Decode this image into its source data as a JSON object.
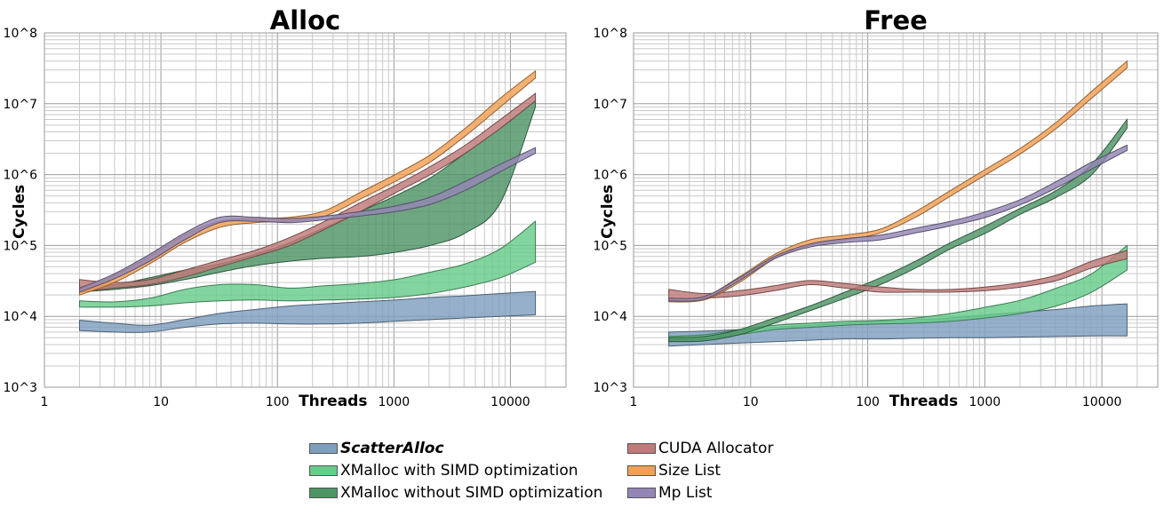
{
  "chart_data": [
    {
      "type": "area",
      "title": "Alloc",
      "xlabel": "Threads",
      "ylabel": "Cycles",
      "xscale": "log",
      "yscale": "log",
      "xlim": [
        1,
        30000
      ],
      "ylim": [
        1000,
        100000000
      ],
      "grid": true,
      "x_tick_labels": [
        "1",
        "10",
        "100",
        "1000",
        "10000"
      ],
      "y_tick_labels": [
        "10^3",
        "10^4",
        "10^5",
        "10^6",
        "10^7",
        "10^8"
      ],
      "x": [
        2,
        4,
        8,
        16,
        32,
        64,
        128,
        256,
        512,
        1024,
        2048,
        4096,
        8192,
        16384
      ],
      "series": [
        {
          "name": "ScatterAlloc",
          "color": "#7f9fbf",
          "low": [
            6300,
            6000,
            6000,
            7000,
            7800,
            8000,
            7800,
            7800,
            8000,
            8500,
            9000,
            9500,
            10000,
            10500
          ],
          "high": [
            8800,
            8000,
            7500,
            9000,
            11000,
            12500,
            14000,
            15000,
            16000,
            17000,
            18500,
            19500,
            21000,
            22500
          ]
        },
        {
          "name": "XMalloc with SIMD optimization",
          "color": "#66cc8a",
          "low": [
            13500,
            13500,
            14000,
            15500,
            16500,
            17000,
            16500,
            17000,
            17500,
            18500,
            21000,
            26000,
            35000,
            58000
          ],
          "high": [
            16500,
            16000,
            18000,
            24000,
            28000,
            28000,
            25000,
            27000,
            29000,
            33000,
            42000,
            55000,
            90000,
            220000
          ]
        },
        {
          "name": "XMalloc without SIMD optimization",
          "color": "#4e9466",
          "low": [
            22000,
            24000,
            27000,
            33000,
            42000,
            52000,
            60000,
            66000,
            70000,
            80000,
            100000,
            150000,
            400000,
            9000000
          ],
          "high": [
            26000,
            28000,
            35000,
            45000,
            55000,
            75000,
            110000,
            180000,
            300000,
            500000,
            900000,
            2000000,
            4500000,
            11000000
          ]
        },
        {
          "name": "CUDA Allocator",
          "color": "#c07a7a",
          "low": [
            22000,
            25000,
            28000,
            36000,
            50000,
            70000,
            100000,
            170000,
            300000,
            550000,
            1000000,
            2000000,
            4500000,
            11000000
          ],
          "high": [
            33000,
            30000,
            33000,
            45000,
            62000,
            85000,
            130000,
            220000,
            400000,
            700000,
            1300000,
            2600000,
            6000000,
            14000000
          ]
        },
        {
          "name": "Size List",
          "color": "#f2a055",
          "low": [
            20000,
            30000,
            55000,
            110000,
            180000,
            210000,
            220000,
            260000,
            450000,
            800000,
            1500000,
            3500000,
            9000000,
            23000000
          ],
          "high": [
            24000,
            38000,
            70000,
            140000,
            220000,
            240000,
            250000,
            310000,
            560000,
            1000000,
            1900000,
            4500000,
            12000000,
            29000000
          ]
        },
        {
          "name": "Mp List",
          "color": "#9486b4",
          "low": [
            22000,
            34000,
            60000,
            120000,
            210000,
            220000,
            210000,
            230000,
            260000,
            300000,
            380000,
            600000,
            1100000,
            2000000
          ],
          "high": [
            25000,
            40000,
            75000,
            150000,
            250000,
            250000,
            240000,
            260000,
            300000,
            360000,
            480000,
            800000,
            1400000,
            2400000
          ]
        }
      ]
    },
    {
      "type": "area",
      "title": "Free",
      "xlabel": "Threads",
      "ylabel": "Cycles",
      "xscale": "log",
      "yscale": "log",
      "xlim": [
        1,
        30000
      ],
      "ylim": [
        1000,
        100000000
      ],
      "grid": true,
      "x_tick_labels": [
        "1",
        "10",
        "100",
        "1000",
        "10000"
      ],
      "y_tick_labels": [
        "10^3",
        "10^4",
        "10^5",
        "10^6",
        "10^7",
        "10^8"
      ],
      "x": [
        2,
        4,
        8,
        16,
        32,
        64,
        128,
        256,
        512,
        1024,
        2048,
        4096,
        8192,
        16384
      ],
      "series": [
        {
          "name": "ScatterAlloc",
          "color": "#7f9fbf",
          "low": [
            3800,
            4000,
            4200,
            4400,
            4600,
            4800,
            4800,
            4900,
            5000,
            5000,
            5100,
            5200,
            5300,
            5300
          ],
          "high": [
            6000,
            6200,
            6500,
            7000,
            7500,
            8000,
            8500,
            9000,
            9500,
            10500,
            11500,
            12500,
            14000,
            15000
          ]
        },
        {
          "name": "XMalloc with SIMD optimization",
          "color": "#66cc8a",
          "low": [
            4600,
            4800,
            5500,
            6500,
            7000,
            7500,
            7800,
            8000,
            8500,
            9500,
            11000,
            14000,
            22000,
            45000
          ],
          "high": [
            5200,
            5500,
            6500,
            7500,
            8000,
            8500,
            8800,
            9500,
            11000,
            13500,
            17000,
            25000,
            40000,
            100000
          ]
        },
        {
          "name": "XMalloc without SIMD optimization",
          "color": "#4e9466",
          "low": [
            4400,
            4500,
            5500,
            8000,
            12000,
            18000,
            28000,
            48000,
            90000,
            150000,
            280000,
            480000,
            1000000,
            4500000
          ],
          "high": [
            5000,
            5200,
            6500,
            9500,
            14000,
            22000,
            35000,
            60000,
            110000,
            190000,
            340000,
            600000,
            1400000,
            6000000
          ]
        },
        {
          "name": "CUDA Allocator",
          "color": "#c07a7a",
          "low": [
            17000,
            18000,
            19500,
            23000,
            28000,
            25000,
            22000,
            22000,
            22000,
            23000,
            26000,
            32000,
            48000,
            65000
          ],
          "high": [
            24000,
            21000,
            23000,
            27000,
            32000,
            29000,
            26000,
            24000,
            24000,
            26000,
            30000,
            38000,
            60000,
            85000
          ]
        },
        {
          "name": "Size List",
          "color": "#f2a055",
          "low": [
            16000,
            17000,
            30000,
            65000,
            100000,
            120000,
            150000,
            250000,
            500000,
            1000000,
            2000000,
            4500000,
            12000000,
            32000000
          ],
          "high": [
            18000,
            19000,
            36000,
            75000,
            120000,
            140000,
            170000,
            300000,
            600000,
            1200000,
            2400000,
            5500000,
            15000000,
            40000000
          ]
        },
        {
          "name": "Mp List",
          "color": "#9486b4",
          "low": [
            16500,
            17500,
            32000,
            65000,
            95000,
            110000,
            120000,
            150000,
            190000,
            250000,
            380000,
            650000,
            1200000,
            2200000
          ],
          "high": [
            18000,
            19000,
            35000,
            70000,
            105000,
            125000,
            140000,
            175000,
            220000,
            300000,
            450000,
            800000,
            1500000,
            2600000
          ]
        }
      ]
    }
  ],
  "legend": {
    "items": [
      {
        "label": "ScatterAlloc",
        "color": "#7f9fbf",
        "emphasis": true
      },
      {
        "label": "XMalloc with SIMD optimization",
        "color": "#66cc8a",
        "emphasis": false
      },
      {
        "label": "XMalloc without SIMD optimization",
        "color": "#4e9466",
        "emphasis": false
      },
      {
        "label": "CUDA Allocator",
        "color": "#c07a7a",
        "emphasis": false
      },
      {
        "label": "Size List",
        "color": "#f2a055",
        "emphasis": false
      },
      {
        "label": "Mp List",
        "color": "#9486b4",
        "emphasis": false
      }
    ]
  }
}
